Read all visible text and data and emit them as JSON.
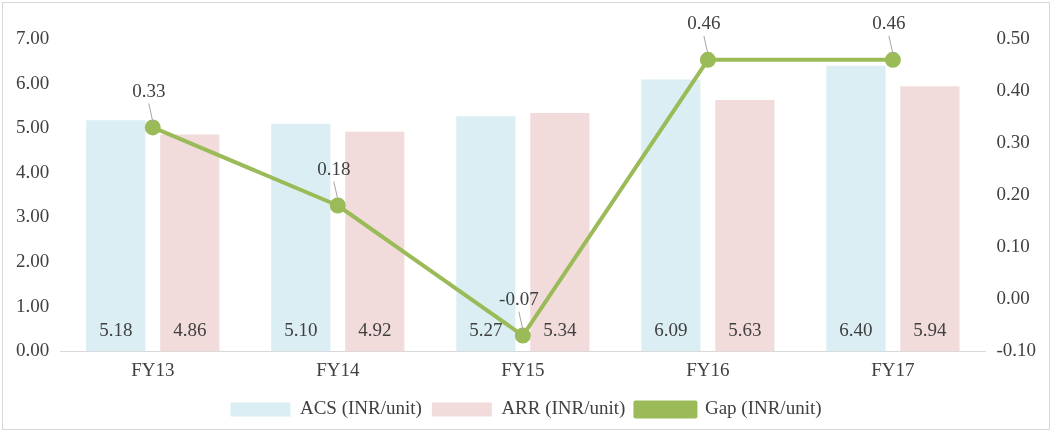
{
  "chart_data": {
    "type": "bar",
    "categories": [
      "FY13",
      "FY14",
      "FY15",
      "FY16",
      "FY17"
    ],
    "series": [
      {
        "name": "ACS (INR/unit)",
        "color": "#daeef3",
        "values": [
          5.18,
          5.1,
          5.27,
          6.09,
          6.4
        ],
        "value_labels": [
          "5.18",
          "5.10",
          "5.27",
          "6.09",
          "6.40"
        ]
      },
      {
        "name": "ARR (INR/unit)",
        "color": "#f2dcdb",
        "values": [
          4.86,
          4.92,
          5.34,
          5.63,
          5.94
        ],
        "value_labels": [
          "4.86",
          "4.92",
          "5.34",
          "5.63",
          "5.94"
        ]
      },
      {
        "name": "Gap (INR/unit)",
        "type": "line",
        "axis": "y2",
        "color": "#9bbb59",
        "marker": "circle",
        "line_style": "solid",
        "values": [
          0.33,
          0.18,
          -0.07,
          0.46,
          0.46
        ],
        "value_labels": [
          "0.33",
          "0.18",
          "-0.07",
          "0.46",
          "0.46"
        ]
      }
    ],
    "ylim": [
      0,
      7
    ],
    "yticks": [
      {
        "value": 0,
        "label": "0.00"
      },
      {
        "value": 1,
        "label": "1.00"
      },
      {
        "value": 2,
        "label": "2.00"
      },
      {
        "value": 3,
        "label": "3.00"
      },
      {
        "value": 4,
        "label": "4.00"
      },
      {
        "value": 5,
        "label": "5.00"
      },
      {
        "value": 6,
        "label": "6.00"
      },
      {
        "value": 7,
        "label": "7.00"
      }
    ],
    "y2lim": [
      -0.1,
      0.5
    ],
    "y2ticks": [
      {
        "value": -0.1,
        "label": "-0.10"
      },
      {
        "value": 0,
        "label": "0.00"
      },
      {
        "value": 0.1,
        "label": "0.10"
      },
      {
        "value": 0.2,
        "label": "0.20"
      },
      {
        "value": 0.3,
        "label": "0.30"
      },
      {
        "value": 0.4,
        "label": "0.40"
      },
      {
        "value": 0.5,
        "label": "0.50"
      }
    ],
    "grid": false,
    "legend": "bottom"
  }
}
